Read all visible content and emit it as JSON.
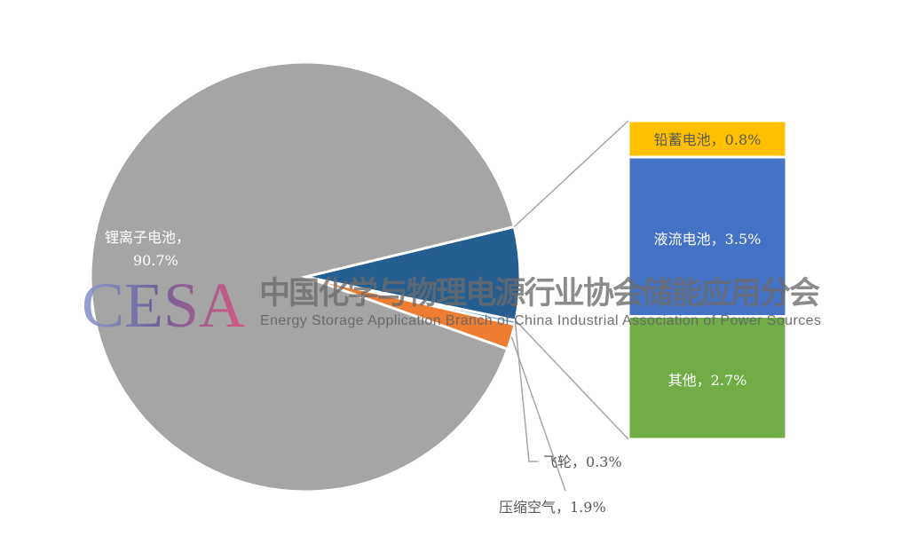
{
  "chart_data": {
    "type": "pie",
    "subtype": "bar-of-pie",
    "title": "",
    "pie_slices": [
      {
        "label": "锂离子电池",
        "value": 90.7,
        "display": "锂离子电池，",
        "display2": "90.7%",
        "color": "#A5A5A5"
      },
      {
        "label": "",
        "value": 7.0,
        "color": "#255E91",
        "group": "bar"
      },
      {
        "label": "飞轮",
        "value": 0.3,
        "display": "飞轮，0.3%",
        "color": "#5B9BD5"
      },
      {
        "label": "压缩空气",
        "value": 1.9,
        "display": "压缩空气，1.9%",
        "color": "#ED7D31"
      }
    ],
    "bar_segments": [
      {
        "label": "铅蓄电池",
        "value": 0.8,
        "display": "铅蓄电池，0.8%",
        "color": "#FFC000"
      },
      {
        "label": "液流电池",
        "value": 3.5,
        "display": "液流电池，3.5%",
        "color": "#4472C4"
      },
      {
        "label": "其他",
        "value": 2.7,
        "display": "其他，2.7%",
        "color": "#70AD47"
      }
    ],
    "legend": "none"
  },
  "watermark": {
    "logo": "CESA",
    "cn": "中国化学与物理电源行业协会储能应用分会",
    "en": "Energy Storage Application Branch of China Industrial Association of Power Sources"
  }
}
